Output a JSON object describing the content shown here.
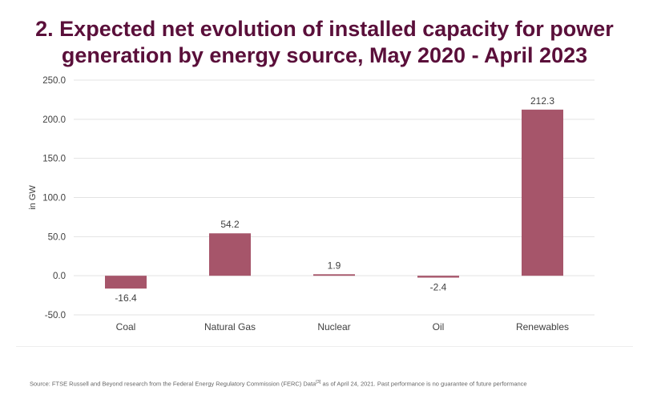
{
  "title_line1": "2. Expected net evolution of installed capacity for power",
  "title_line2": "generation by energy source, May 2020 - April 2023",
  "source": {
    "prefix": "Source: FTSE Russell and Beyond research from the Federal Energy Regulatory Commission (FERC) Data",
    "ref": "[3]",
    "suffix": " as of April 24, 2021. Past performance is no guarantee of future performance"
  },
  "colors": {
    "bar": "#a6556a",
    "title": "#5a0f3a",
    "grid": "#e3e3e3",
    "text": "#404040"
  },
  "chart_data": {
    "type": "bar",
    "title": "2. Expected net evolution of installed capacity for power generation by energy source, May 2020 - April 2023",
    "xlabel": "",
    "ylabel": "in GW",
    "categories": [
      "Coal",
      "Natural Gas",
      "Nuclear",
      "Oil",
      "Renewables"
    ],
    "values": [
      -16.4,
      54.2,
      1.9,
      -2.4,
      212.3
    ],
    "value_labels": [
      "-16.4",
      "54.2",
      "1.9",
      "-2.4",
      "212.3"
    ],
    "ylim": [
      -50,
      250
    ],
    "yticks": [
      -50,
      0,
      50,
      100,
      150,
      200,
      250
    ],
    "ytick_labels": [
      "-50.0",
      "0.0",
      "50.0",
      "100.0",
      "150.0",
      "200.0",
      "250.0"
    ],
    "grid": true,
    "legend": "none"
  }
}
